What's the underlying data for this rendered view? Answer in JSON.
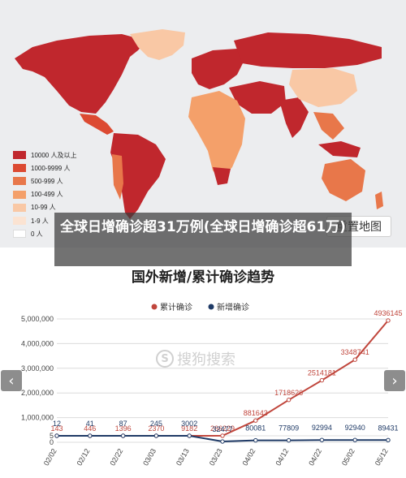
{
  "caption": {
    "text": "全球日增确诊超31万例(全球日增确诊超61万)"
  },
  "map": {
    "reset_label": "重置地图",
    "legend": [
      {
        "label": "10000 人及以上",
        "color": "#c0272d"
      },
      {
        "label": "1000-9999 人",
        "color": "#dc4a32"
      },
      {
        "label": "500-999 人",
        "color": "#e8774a"
      },
      {
        "label": "100-499 人",
        "color": "#f4a06a"
      },
      {
        "label": "10-99 人",
        "color": "#f9c8a5"
      },
      {
        "label": "1-9 人",
        "color": "#fbe3d2"
      },
      {
        "label": "0 人",
        "color": "#ffffff"
      }
    ]
  },
  "nav": {
    "prev_icon": "chevron-left-icon",
    "next_icon": "chevron-right-icon",
    "prev": "‹",
    "next": "›"
  },
  "watermark": {
    "logo": "S",
    "text": "搜狗搜索"
  },
  "chart_data": {
    "type": "line",
    "title": "国外新增/累计确诊趋势",
    "legend_position": "top-center",
    "xlabel": "",
    "ylabel": "",
    "x": [
      "02/02",
      "02/12",
      "02/22",
      "03/03",
      "03/13",
      "03/23",
      "04/02",
      "04/12",
      "04/22",
      "05/02",
      "05/12"
    ],
    "y_ticks": [
      "0",
      "5",
      "1,000,000",
      "2,000,000",
      "3,000,000",
      "4,000,000",
      "5,000,000"
    ],
    "ylim": [
      0,
      5000000
    ],
    "grid": true,
    "series": [
      {
        "name": "累计确诊",
        "color": "#c0463c",
        "values": [
          143,
          446,
          1396,
          2370,
          9182,
          266229,
          881643,
          1718626,
          2514181,
          3348741,
          4936145
        ],
        "labels": [
          "143",
          "446",
          "1396",
          "2370",
          "9182",
          "266229",
          "881643",
          "1718626",
          "2514181",
          "3348741",
          "4936145"
        ]
      },
      {
        "name": "新增确诊",
        "color": "#1f3a66",
        "values": [
          12,
          41,
          87,
          245,
          3002,
          32477,
          80081,
          77809,
          92994,
          92940,
          89431
        ],
        "labels": [
          "12",
          "41",
          "87",
          "245",
          "3002",
          "32477",
          "80081",
          "77809",
          "92994",
          "92940",
          "89431"
        ]
      }
    ]
  }
}
